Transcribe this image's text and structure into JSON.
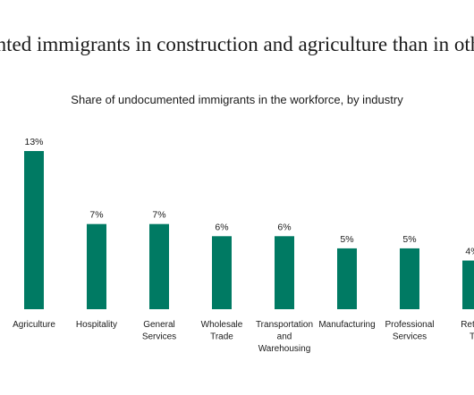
{
  "headline": "umented immigrants in construction and agriculture than in othe",
  "chart_data": {
    "type": "bar",
    "title": "Share of undocumented immigrants in the workforce, by industry",
    "categories": [
      "Agriculture",
      "Hospitality",
      "General Services",
      "Wholesale Trade",
      "Transportation and Warehousing",
      "Manufacturing",
      "Professional Services",
      "Retail T"
    ],
    "values": [
      13,
      7,
      7,
      6,
      6,
      5,
      5,
      4
    ],
    "value_labels": [
      "13%",
      "7%",
      "7%",
      "6%",
      "6%",
      "5%",
      "5%",
      "4%"
    ],
    "xlabel": "",
    "ylabel": "",
    "ylim": [
      0,
      13
    ],
    "grid": false,
    "bar_color": "#007a63"
  }
}
